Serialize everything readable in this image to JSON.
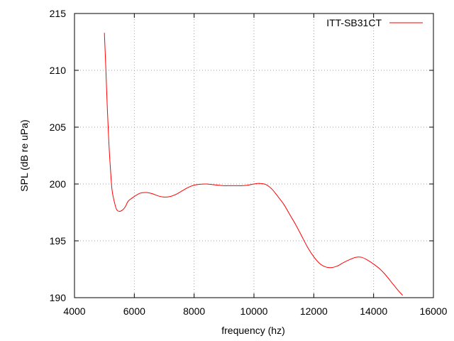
{
  "chart_data": {
    "type": "line",
    "title": "",
    "xlabel": "frequency (hz)",
    "ylabel": "SPL (dB re uPa)",
    "xlim": [
      4000,
      16000
    ],
    "ylim": [
      190,
      215
    ],
    "xticks": [
      4000,
      6000,
      8000,
      10000,
      12000,
      14000,
      16000
    ],
    "yticks": [
      190,
      195,
      200,
      205,
      210,
      215
    ],
    "grid": true,
    "legend_position": "top-right",
    "series": [
      {
        "name": "ITT-SB31CT",
        "color": "#ff0000",
        "x": [
          5000,
          5050,
          5100,
          5150,
          5200,
          5250,
          5300,
          5400,
          5500,
          5600,
          5700,
          5800,
          6000,
          6200,
          6400,
          6600,
          6800,
          7000,
          7200,
          7400,
          7600,
          7800,
          8000,
          8200,
          8400,
          8600,
          8800,
          9000,
          9200,
          9400,
          9600,
          9800,
          10000,
          10200,
          10400,
          10600,
          10800,
          11000,
          11200,
          11400,
          11600,
          11800,
          12000,
          12200,
          12400,
          12600,
          12800,
          13000,
          13200,
          13400,
          13600,
          13800,
          14000,
          14200,
          14400,
          14600,
          14800,
          14970
        ],
        "y": [
          213.3,
          210.0,
          206.5,
          203.6,
          201.4,
          199.6,
          198.8,
          197.8,
          197.6,
          197.7,
          198.0,
          198.5,
          198.9,
          199.2,
          199.25,
          199.15,
          198.95,
          198.85,
          198.9,
          199.1,
          199.4,
          199.7,
          199.9,
          199.98,
          200.0,
          199.95,
          199.9,
          199.85,
          199.85,
          199.85,
          199.85,
          199.9,
          200.0,
          200.05,
          199.95,
          199.55,
          198.9,
          198.2,
          197.3,
          196.4,
          195.4,
          194.4,
          193.6,
          193.0,
          192.7,
          192.65,
          192.8,
          193.1,
          193.35,
          193.55,
          193.55,
          193.3,
          192.95,
          192.55,
          192.0,
          191.35,
          190.7,
          190.2
        ]
      }
    ]
  }
}
